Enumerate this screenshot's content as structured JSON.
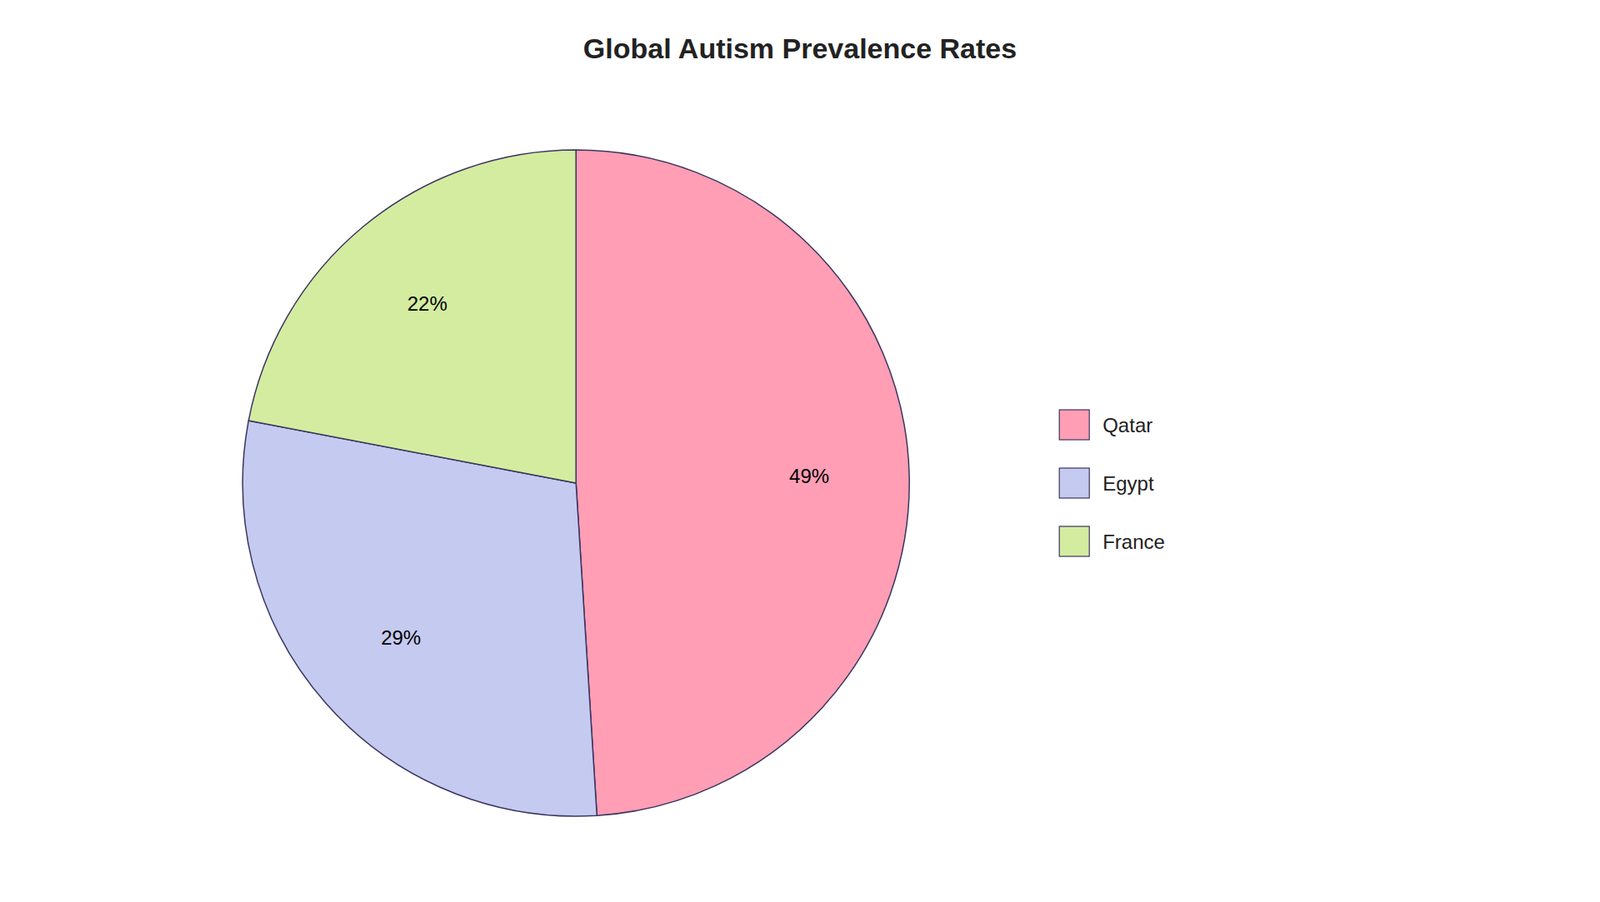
{
  "chart_data": {
    "type": "pie",
    "title": "Global Autism Prevalence Rates",
    "categories": [
      "Qatar",
      "Egypt",
      "France"
    ],
    "values": [
      49,
      29,
      22
    ],
    "value_labels": [
      "49%",
      "29%",
      "22%"
    ],
    "colors": [
      "#FF9EB5",
      "#C5CAF0",
      "#D4ECA0"
    ],
    "data_labels": true,
    "legend": "right"
  }
}
